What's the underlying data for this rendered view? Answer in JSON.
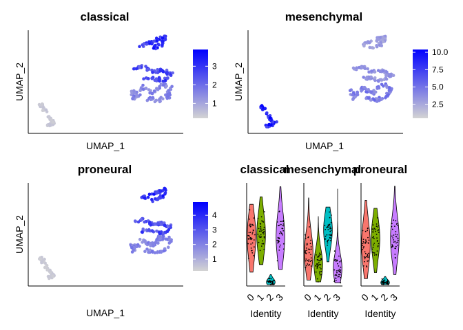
{
  "figure": {
    "umap_xlabel": "UMAP_1",
    "umap_ylabel": "UMAP_2",
    "violin_xlabel": "Identity",
    "gradient_low": "#d3d3d3",
    "gradient_high": "#0000ff"
  },
  "chart_data": [
    {
      "type": "scatter",
      "title": "classical",
      "xlabel": "UMAP_1",
      "ylabel": "UMAP_2",
      "legend_position": "right",
      "color_scale": {
        "low": "#d3d3d3",
        "high": "#0000ff",
        "range": [
          0.2,
          3.9
        ],
        "ticks": [
          "1",
          "2",
          "3"
        ],
        "tick_values": [
          1,
          2,
          3
        ]
      },
      "clusters": [
        {
          "id": "left blob",
          "mean_value": 0.4
        },
        {
          "id": "top arc",
          "mean_value": 3.0
        },
        {
          "id": "middle loop",
          "mean_value": 2.6
        },
        {
          "id": "lower loop",
          "mean_value": 1.5
        }
      ]
    },
    {
      "type": "scatter",
      "title": "mesenchymal",
      "xlabel": "UMAP_1",
      "ylabel": "UMAP_2",
      "legend_position": "right",
      "color_scale": {
        "low": "#d3d3d3",
        "high": "#0000ff",
        "range": [
          0.5,
          10.4
        ],
        "ticks": [
          "2.5",
          "5.0",
          "7.5",
          "10.0"
        ],
        "tick_values": [
          2.5,
          5.0,
          7.5,
          10.0
        ]
      },
      "clusters": [
        {
          "id": "left blob",
          "mean_value": 9.0
        },
        {
          "id": "top arc",
          "mean_value": 3.0
        },
        {
          "id": "middle loop",
          "mean_value": 3.5
        },
        {
          "id": "lower loop",
          "mean_value": 4.5
        }
      ]
    },
    {
      "type": "scatter",
      "title": "proneural",
      "xlabel": "UMAP_1",
      "ylabel": "UMAP_2",
      "legend_position": "right",
      "color_scale": {
        "low": "#d3d3d3",
        "high": "#0000ff",
        "range": [
          0.2,
          4.9
        ],
        "ticks": [
          "1",
          "2",
          "3",
          "4"
        ],
        "tick_values": [
          1,
          2,
          3,
          4
        ]
      },
      "clusters": [
        {
          "id": "left blob",
          "mean_value": 0.4
        },
        {
          "id": "top arc",
          "mean_value": 3.8
        },
        {
          "id": "middle loop",
          "mean_value": 3.2
        },
        {
          "id": "lower loop",
          "mean_value": 2.0
        }
      ]
    },
    {
      "type": "violin",
      "title": "classical",
      "xlabel": "Identity",
      "categories": [
        "0",
        "1",
        "2",
        "3"
      ],
      "colors": [
        "#f8766d",
        "#7cae00",
        "#00bfc4",
        "#c77cff"
      ],
      "ylim": [
        0,
        4
      ],
      "series": [
        {
          "category": "0",
          "median": 1.9,
          "q1": 1.2,
          "q3": 2.5,
          "min": 0.5,
          "max": 3.2
        },
        {
          "category": "1",
          "median": 2.0,
          "q1": 1.4,
          "q3": 2.6,
          "min": 0.8,
          "max": 3.5
        },
        {
          "category": "2",
          "median": 0.1,
          "q1": 0.0,
          "q3": 0.2,
          "min": 0.0,
          "max": 0.4
        },
        {
          "category": "3",
          "median": 1.9,
          "q1": 1.4,
          "q3": 2.7,
          "min": 0.6,
          "max": 3.9
        }
      ]
    },
    {
      "type": "violin",
      "title": "mesenchymal",
      "xlabel": "Identity",
      "categories": [
        "0",
        "1",
        "2",
        "3"
      ],
      "colors": [
        "#f8766d",
        "#7cae00",
        "#00bfc4",
        "#c77cff"
      ],
      "ylim": [
        0,
        11
      ],
      "series": [
        {
          "category": "0",
          "median": 3.5,
          "q1": 2.0,
          "q3": 5.0,
          "min": 0.5,
          "max": 9.5
        },
        {
          "category": "1",
          "median": 2.2,
          "q1": 1.2,
          "q3": 3.5,
          "min": 0.3,
          "max": 7.5
        },
        {
          "category": "2",
          "median": 6.0,
          "q1": 4.5,
          "q3": 7.2,
          "min": 2.5,
          "max": 8.5
        },
        {
          "category": "3",
          "median": 1.8,
          "q1": 0.8,
          "q3": 3.0,
          "min": 0.2,
          "max": 10.5
        }
      ]
    },
    {
      "type": "violin",
      "title": "proneural",
      "xlabel": "Identity",
      "categories": [
        "0",
        "1",
        "2",
        "3"
      ],
      "colors": [
        "#f8766d",
        "#7cae00",
        "#00bfc4",
        "#c77cff"
      ],
      "ylim": [
        0,
        5
      ],
      "series": [
        {
          "category": "0",
          "median": 2.0,
          "q1": 1.2,
          "q3": 2.8,
          "min": 0.3,
          "max": 4.2
        },
        {
          "category": "1",
          "median": 2.3,
          "q1": 1.6,
          "q3": 3.0,
          "min": 0.6,
          "max": 3.8
        },
        {
          "category": "2",
          "median": 0.1,
          "q1": 0.0,
          "q3": 0.2,
          "min": 0.0,
          "max": 0.4
        },
        {
          "category": "3",
          "median": 2.3,
          "q1": 1.5,
          "q3": 3.0,
          "min": 0.5,
          "max": 4.9
        }
      ]
    }
  ]
}
